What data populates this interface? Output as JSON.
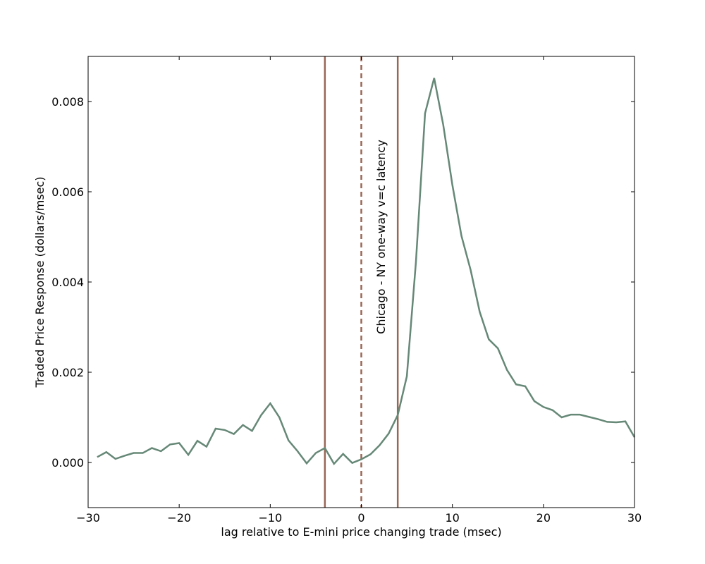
{
  "chart_data": {
    "type": "line",
    "title": "",
    "xlabel": "lag relative to E-mini price changing trade (msec)",
    "ylabel": "Traded Price Response (dollars/msec)",
    "xlim": [
      -30,
      30
    ],
    "ylim": [
      -0.001,
      0.009
    ],
    "xticks": [
      -30,
      -20,
      -10,
      0,
      10,
      20,
      30
    ],
    "xtick_labels": [
      "−30",
      "−20",
      "−10",
      "0",
      "10",
      "20",
      "30"
    ],
    "yticks": [
      0.0,
      0.002,
      0.004,
      0.006,
      0.008
    ],
    "ytick_labels": [
      "0.000",
      "0.002",
      "0.004",
      "0.006",
      "0.008"
    ],
    "grid": false,
    "line_color": "#668877",
    "vline_color": "#996655",
    "series": [
      {
        "x": [
          -29,
          -28,
          -27,
          -26,
          -25,
          -24,
          -23,
          -22,
          -21,
          -20,
          -19,
          -18,
          -17,
          -16,
          -15,
          -14,
          -13,
          -12,
          -11,
          -10,
          -9,
          -8,
          -7,
          -6,
          -5,
          -4,
          -3,
          -2,
          -1,
          0,
          1,
          2,
          3,
          4,
          5,
          6,
          7,
          8,
          9,
          10,
          11,
          12,
          13,
          14,
          15,
          16,
          17,
          18,
          19,
          20,
          21,
          22,
          23,
          24,
          25,
          26,
          27,
          28,
          29,
          30
        ],
        "values": [
          0.00012,
          0.00023,
          8e-05,
          0.00015,
          0.00021,
          0.00021,
          0.00032,
          0.00025,
          0.0004,
          0.00043,
          0.00017,
          0.00048,
          0.00035,
          0.00075,
          0.00072,
          0.00063,
          0.00083,
          0.0007,
          0.00105,
          0.00131,
          0.001,
          0.00049,
          0.00025,
          -2e-05,
          0.00021,
          0.00032,
          -3e-05,
          0.00019,
          -1e-05,
          7e-05,
          0.00018,
          0.00038,
          0.00064,
          0.00105,
          0.00191,
          0.00445,
          0.00774,
          0.00852,
          0.00748,
          0.00615,
          0.00502,
          0.00427,
          0.00334,
          0.00273,
          0.00253,
          0.00205,
          0.00173,
          0.00169,
          0.00136,
          0.00123,
          0.00116,
          0.001,
          0.00106,
          0.00106,
          0.00101,
          0.00096,
          0.0009,
          0.00089,
          0.00091,
          0.00056
        ]
      }
    ],
    "vlines": [
      {
        "x": -4,
        "style": "solid"
      },
      {
        "x": 0,
        "style": "dashed"
      },
      {
        "x": 4,
        "style": "solid"
      }
    ],
    "annotation": {
      "text": "Chicago - NY one-way v=c latency",
      "x": 2.6,
      "y": 0.005,
      "rotation": -90
    }
  }
}
